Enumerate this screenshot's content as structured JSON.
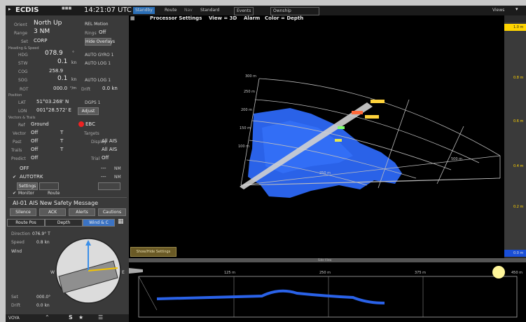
{
  "titlebar": {
    "app": "ECDIS",
    "time": "14:21:07 UTC",
    "tabs": [
      "Standby",
      "Route",
      "Nav",
      "Standard",
      "Events",
      "Ownship"
    ],
    "views": "Views"
  },
  "left": {
    "orient_label": "Orient",
    "orient": "North Up",
    "motion": "REL Motion",
    "range_label": "Range",
    "range": "3 NM",
    "rings_label": "Rings",
    "rings": "Off",
    "set_label": "Set",
    "set": "CORP",
    "hide_overlays": "Hide Overlays",
    "heading_speed_label": "Heading & Speed",
    "hdg_label": "HDG",
    "hdg": "078.9",
    "hdg_src": "AUTO GYRO 1",
    "stw_label": "STW",
    "stw": "0.1",
    "stw_unit": "kn",
    "stw_src": "AUTO LOG 1",
    "cog_label": "COG",
    "cog": "258.9",
    "sog_label": "SOG",
    "sog": "0.1",
    "sog_unit": "kn",
    "sog_src": "AUTO LOG 1",
    "rot_label": "ROT",
    "rot": "000.0",
    "rot_unit": "°/m",
    "drift_label": "Drift",
    "drift": "0.0 kn",
    "pos_label": "Position",
    "lat_label": "LAT",
    "lat": "51°03.268' N",
    "lat_src": "DGPS 1",
    "lon_label": "LON",
    "lon": "001°28.572' E",
    "adjust": "Adjust",
    "vectors_label": "Vectors & Trails",
    "ref_label": "Ref",
    "ref": "Ground",
    "ebc": "EBC",
    "vector_label": "Vector",
    "vector": "Off",
    "t1": "T",
    "past_label": "Past",
    "past": "Off",
    "t2": "T",
    "trails_label": "Trails",
    "trails": "Off",
    "t3": "T",
    "predict_label": "Predict",
    "predict": "Off",
    "targets_label": "Targets",
    "display_label": "Display",
    "display": "All AIS",
    "trial_label": "Trial",
    "trial": "Off",
    "autotrk": "AUTOTRK",
    "settings": "Settings",
    "off1": "OFF",
    "nm1": "NM",
    "nm2": "NM",
    "dash1": "---",
    "dash2": "---",
    "mode1": "Monitor",
    "mode2": "Route",
    "alert": "AI-01 AIS New Safety Message",
    "alert_buttons": [
      "Silence",
      "ACK",
      "Alerts",
      "Cautions"
    ],
    "tabs": [
      "Route Pos",
      "Depth",
      "Wind & C"
    ],
    "direction_label": "Direction",
    "direction": "076.9° T",
    "speed_label": "Speed",
    "speed": "0.8 kn",
    "wind": "Wind",
    "set2_label": "Set",
    "set2": "000.0°",
    "drift2_label": "Drift",
    "drift2": "0.0 kn",
    "compass_w": "W",
    "compass_e": "E"
  },
  "main": {
    "menu": [
      "Processor Settings",
      "View = 3D",
      "Alarm",
      "Color = Depth"
    ],
    "range_labels": [
      "300 m",
      "250 m",
      "200 m",
      "150 m",
      "100 m",
      "50 m"
    ],
    "dist_labels": [
      "250 m",
      "500 m"
    ],
    "button": "Show/Hide Settings"
  },
  "scale": {
    "labels": [
      "1.0 m",
      "0.8 m",
      "0.6 m",
      "0.4 m",
      "0.2 m",
      "0.0 m"
    ],
    "colors": {
      "top": "#ffd400",
      "bottom": "#1a4fd8"
    }
  },
  "bottom": {
    "label": "Side View",
    "dist_labels": [
      "125 m",
      "250 m",
      "375 m",
      "450 m"
    ]
  },
  "bottombar": {
    "items": [
      "VOYA"
    ]
  }
}
